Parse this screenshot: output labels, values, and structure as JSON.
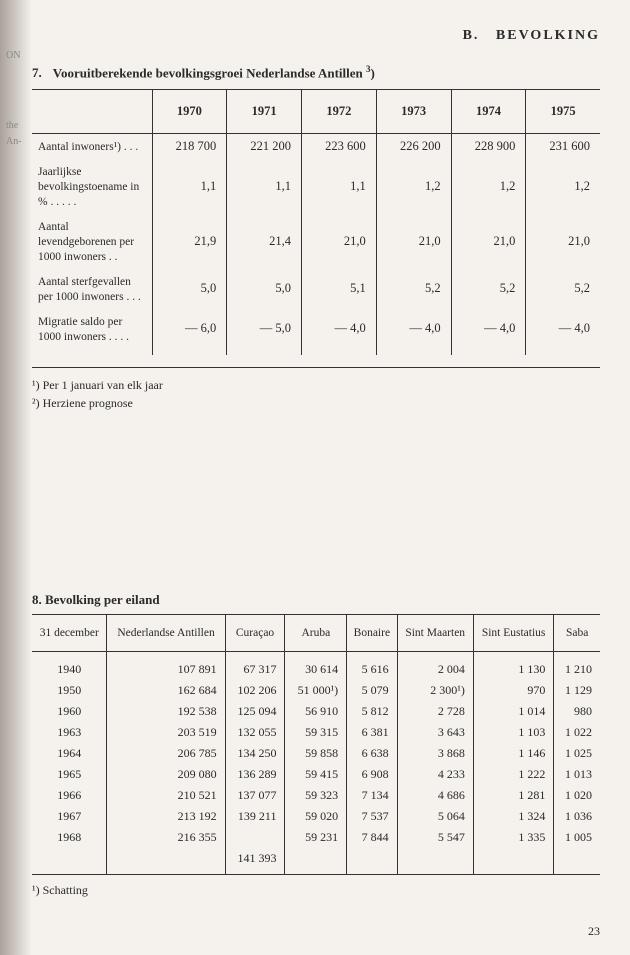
{
  "header": {
    "section_letter": "B.",
    "section_title": "BEVOLKING"
  },
  "table1": {
    "number": "7.",
    "title": "Vooruitberekende bevolkingsgroei Nederlandse Antillen",
    "title_sup": "3",
    "years": [
      "1970",
      "1971",
      "1972",
      "1973",
      "1974",
      "1975"
    ],
    "rows": [
      {
        "label": "Aantal inwoners¹) . . .",
        "values": [
          "218 700",
          "221 200",
          "223 600",
          "226 200",
          "228 900",
          "231 600"
        ]
      },
      {
        "label": "Jaarlijkse bevolkingstoename in % . . . . .",
        "values": [
          "1,1",
          "1,1",
          "1,1",
          "1,2",
          "1,2",
          "1,2"
        ]
      },
      {
        "label": "Aantal levendgeborenen per 1000 inwoners . .",
        "values": [
          "21,9",
          "21,4",
          "21,0",
          "21,0",
          "21,0",
          "21,0"
        ]
      },
      {
        "label": "Aantal sterfgevallen per 1000 inwoners . . .",
        "values": [
          "5,0",
          "5,0",
          "5,1",
          "5,2",
          "5,2",
          "5,2"
        ]
      },
      {
        "label": "Migratie saldo per 1000 inwoners . . . .",
        "values": [
          "— 6,0",
          "— 5,0",
          "— 4,0",
          "— 4,0",
          "— 4,0",
          "— 4,0"
        ]
      }
    ],
    "footnotes": [
      "¹) Per 1 januari van elk jaar",
      "²) Herziene prognose"
    ]
  },
  "table2": {
    "number": "8.",
    "title": "Bevolking per eiland",
    "columns": [
      "31 december",
      "Nederlandse Antillen",
      "Curaçao",
      "Aruba",
      "Bonaire",
      "Sint Maarten",
      "Sint Eustatius",
      "Saba"
    ],
    "rows": [
      [
        "1940",
        "107 891",
        "67 317",
        "30 614",
        "5 616",
        "2 004",
        "1 130",
        "1 210"
      ],
      [
        "1950",
        "162 684",
        "102 206",
        "51 000¹)",
        "5 079",
        "2 300¹)",
        "970",
        "1 129"
      ],
      [
        "1960",
        "192 538",
        "125 094",
        "56 910",
        "5 812",
        "2 728",
        "1 014",
        "980"
      ],
      [
        "1963",
        "203 519",
        "132 055",
        "59 315",
        "6 381",
        "3 643",
        "1 103",
        "1 022"
      ],
      [
        "1964",
        "206 785",
        "134 250",
        "59 858",
        "6 638",
        "3 868",
        "1 146",
        "1 025"
      ],
      [
        "1965",
        "209 080",
        "136 289",
        "59 415",
        "6 908",
        "4 233",
        "1 222",
        "1 013"
      ],
      [
        "1966",
        "210 521",
        "137 077",
        "59 323",
        "7 134",
        "4 686",
        "1 281",
        "1 020"
      ],
      [
        "1967",
        "213 192",
        "139 211",
        "59 020",
        "7 537",
        "5 064",
        "1 324",
        "1 036"
      ],
      [
        "1968",
        "216 355",
        "",
        "59 231",
        "7 844",
        "5 547",
        "1 335",
        "1 005"
      ],
      [
        "",
        "",
        "141 393",
        "",
        "",
        "",
        "",
        ""
      ]
    ],
    "footnote": "¹) Schatting"
  },
  "margin": {
    "t1": "ON",
    "t2": "the",
    "t3": "An-"
  },
  "page_number": "23"
}
